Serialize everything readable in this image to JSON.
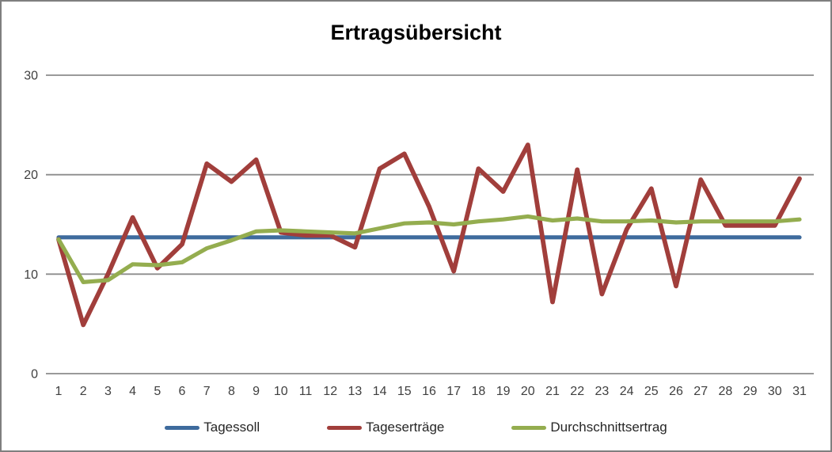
{
  "window": {
    "background": "#FFFFFF",
    "border_color": "#7F7F7F"
  },
  "chart_data": {
    "type": "line",
    "title": "Ertragsübersicht",
    "xlabel": "",
    "ylabel": "",
    "x": [
      1,
      2,
      3,
      4,
      5,
      6,
      7,
      8,
      9,
      10,
      11,
      12,
      13,
      14,
      15,
      16,
      17,
      18,
      19,
      20,
      21,
      22,
      23,
      24,
      25,
      26,
      27,
      28,
      29,
      30,
      31
    ],
    "ylim": [
      0,
      30
    ],
    "yticks": [
      0,
      10,
      20,
      30
    ],
    "grid": true,
    "legend_position": "bottom",
    "series": [
      {
        "name": "Tagessoll",
        "color": "#3E6B9D",
        "values": [
          13.7,
          13.7,
          13.7,
          13.7,
          13.7,
          13.7,
          13.7,
          13.7,
          13.7,
          13.7,
          13.7,
          13.7,
          13.7,
          13.7,
          13.7,
          13.7,
          13.7,
          13.7,
          13.7,
          13.7,
          13.7,
          13.7,
          13.7,
          13.7,
          13.7,
          13.7,
          13.7,
          13.7,
          13.7,
          13.7,
          13.7
        ]
      },
      {
        "name": "Tageserträge",
        "color": "#A13E3B",
        "values": [
          13.5,
          4.9,
          10.0,
          15.7,
          10.6,
          13.0,
          21.1,
          19.3,
          21.5,
          14.2,
          13.9,
          13.9,
          12.7,
          20.6,
          22.1,
          16.8,
          10.3,
          20.6,
          18.3,
          23.0,
          7.2,
          20.5,
          8.0,
          14.5,
          18.6,
          8.8,
          19.5,
          14.9,
          14.9,
          14.9,
          19.6
        ]
      },
      {
        "name": "Durchschnittsertrag",
        "color": "#94AD4F",
        "values": [
          13.5,
          9.2,
          9.4,
          11.0,
          10.9,
          11.2,
          12.6,
          13.4,
          14.3,
          14.4,
          14.3,
          14.2,
          14.1,
          14.6,
          15.1,
          15.2,
          15.0,
          15.3,
          15.5,
          15.8,
          15.4,
          15.6,
          15.3,
          15.3,
          15.4,
          15.2,
          15.3,
          15.3,
          15.3,
          15.3,
          15.5
        ]
      }
    ]
  },
  "styles": {
    "gridline_color": "#8C8C8C",
    "tick_label_color": "#3F3F3F",
    "title_color": "#000000",
    "legend_text_color": "#262626"
  }
}
